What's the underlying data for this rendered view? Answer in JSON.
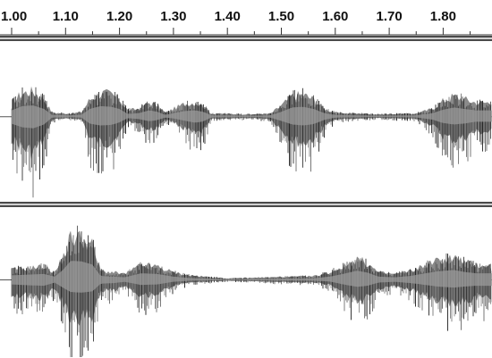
{
  "ruler": {
    "ticks": [
      {
        "label": "1.00",
        "value": 1.0
      },
      {
        "label": "1.10",
        "value": 1.1
      },
      {
        "label": "1.20",
        "value": 1.2
      },
      {
        "label": "1.30",
        "value": 1.3
      },
      {
        "label": "1.40",
        "value": 1.4
      },
      {
        "label": "1.50",
        "value": 1.5
      },
      {
        "label": "1.60",
        "value": 1.6
      },
      {
        "label": "1.70",
        "value": 1.7
      },
      {
        "label": "1.80",
        "value": 1.8
      }
    ]
  },
  "tracks": [
    {
      "color_fill": "#8a8a8a",
      "color_stroke": "#1a1a1a",
      "envelope": [
        [
          1.0,
          0.18,
          0.5
        ],
        [
          1.02,
          0.3,
          0.75
        ],
        [
          1.04,
          0.32,
          0.82
        ],
        [
          1.06,
          0.22,
          0.55
        ],
        [
          1.075,
          0.05,
          0.06
        ],
        [
          1.11,
          0.04,
          0.04
        ],
        [
          1.13,
          0.06,
          0.06
        ],
        [
          1.145,
          0.22,
          0.5
        ],
        [
          1.165,
          0.3,
          0.62
        ],
        [
          1.185,
          0.28,
          0.58
        ],
        [
          1.2,
          0.22,
          0.4
        ],
        [
          1.215,
          0.08,
          0.1
        ],
        [
          1.235,
          0.1,
          0.16
        ],
        [
          1.255,
          0.18,
          0.32
        ],
        [
          1.27,
          0.14,
          0.24
        ],
        [
          1.285,
          0.05,
          0.06
        ],
        [
          1.3,
          0.1,
          0.12
        ],
        [
          1.32,
          0.16,
          0.28
        ],
        [
          1.34,
          0.18,
          0.42
        ],
        [
          1.355,
          0.14,
          0.34
        ],
        [
          1.37,
          0.04,
          0.05
        ],
        [
          1.45,
          0.03,
          0.03
        ],
        [
          1.48,
          0.04,
          0.06
        ],
        [
          1.5,
          0.14,
          0.3
        ],
        [
          1.52,
          0.26,
          0.55
        ],
        [
          1.54,
          0.28,
          0.62
        ],
        [
          1.56,
          0.22,
          0.52
        ],
        [
          1.58,
          0.1,
          0.22
        ],
        [
          1.6,
          0.05,
          0.06
        ],
        [
          1.68,
          0.03,
          0.03
        ],
        [
          1.75,
          0.04,
          0.05
        ],
        [
          1.78,
          0.1,
          0.2
        ],
        [
          1.8,
          0.2,
          0.45
        ],
        [
          1.82,
          0.26,
          0.55
        ],
        [
          1.84,
          0.22,
          0.48
        ],
        [
          1.86,
          0.18,
          0.36
        ]
      ]
    },
    {
      "color_fill": "#8a8a8a",
      "color_stroke": "#1a1a1a",
      "envelope": [
        [
          1.0,
          0.14,
          0.34
        ],
        [
          1.03,
          0.16,
          0.4
        ],
        [
          1.06,
          0.18,
          0.44
        ],
        [
          1.08,
          0.1,
          0.2
        ],
        [
          1.095,
          0.3,
          0.58
        ],
        [
          1.11,
          0.58,
          0.92
        ],
        [
          1.13,
          0.56,
          0.96
        ],
        [
          1.15,
          0.46,
          0.86
        ],
        [
          1.165,
          0.12,
          0.28
        ],
        [
          1.19,
          0.1,
          0.24
        ],
        [
          1.21,
          0.08,
          0.14
        ],
        [
          1.24,
          0.2,
          0.38
        ],
        [
          1.27,
          0.18,
          0.34
        ],
        [
          1.3,
          0.1,
          0.14
        ],
        [
          1.33,
          0.06,
          0.06
        ],
        [
          1.4,
          0.02,
          0.02
        ],
        [
          1.45,
          0.03,
          0.03
        ],
        [
          1.5,
          0.04,
          0.05
        ],
        [
          1.56,
          0.05,
          0.06
        ],
        [
          1.59,
          0.1,
          0.12
        ],
        [
          1.62,
          0.2,
          0.38
        ],
        [
          1.64,
          0.28,
          0.52
        ],
        [
          1.66,
          0.22,
          0.44
        ],
        [
          1.68,
          0.1,
          0.2
        ],
        [
          1.71,
          0.08,
          0.14
        ],
        [
          1.74,
          0.12,
          0.24
        ],
        [
          1.76,
          0.18,
          0.34
        ],
        [
          1.79,
          0.26,
          0.5
        ],
        [
          1.82,
          0.3,
          0.58
        ],
        [
          1.84,
          0.24,
          0.5
        ],
        [
          1.86,
          0.2,
          0.44
        ]
      ]
    }
  ]
}
